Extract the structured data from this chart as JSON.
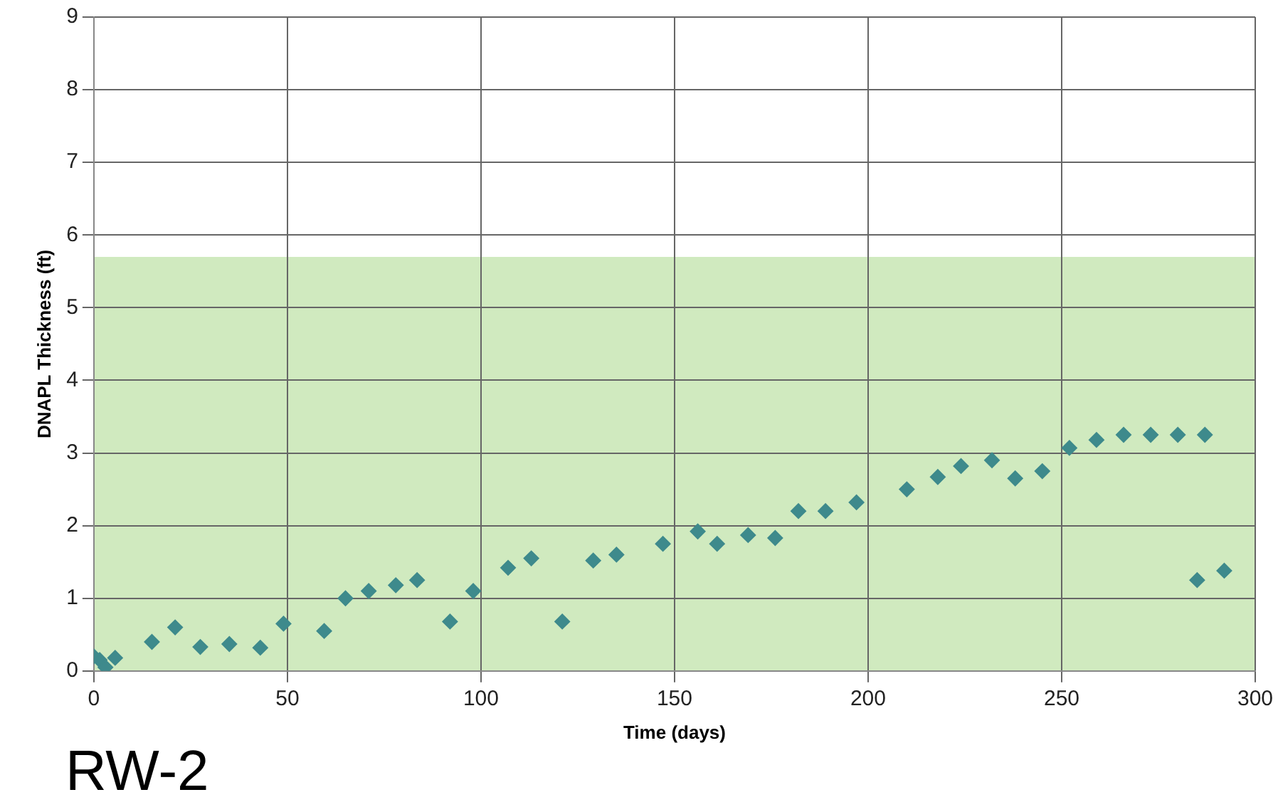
{
  "chart_data": {
    "type": "scatter",
    "title": "RW-2",
    "xlabel": "Time (days)",
    "ylabel": "DNAPL Thickness (ft)",
    "xlim": [
      0,
      300
    ],
    "xticks": [
      0,
      50,
      100,
      150,
      200,
      250,
      300
    ],
    "ylim": [
      0,
      9
    ],
    "yticks": [
      0,
      1,
      2,
      3,
      4,
      5,
      6,
      7,
      8,
      9
    ],
    "grid": true,
    "legend": false,
    "marker": "diamond",
    "bands": [
      {
        "axis": "y",
        "from": 0,
        "to": 5.7,
        "color": "#c8e6b4"
      }
    ],
    "series": [
      {
        "color": "#3e8a8c",
        "x": [
          0,
          1.5,
          3,
          5.5,
          15,
          21,
          27.5,
          35,
          43,
          49,
          59.5,
          65,
          71,
          78,
          83.5,
          92,
          98,
          107,
          113,
          121,
          129,
          135,
          147,
          156,
          161,
          169,
          176,
          182,
          189,
          197,
          210,
          218,
          224,
          232,
          238,
          245,
          252,
          259,
          266,
          273,
          280,
          287,
          285,
          292
        ],
        "values": [
          0.2,
          0.15,
          0.05,
          0.18,
          0.4,
          0.6,
          0.33,
          0.37,
          0.32,
          0.65,
          0.55,
          1.0,
          1.1,
          1.18,
          1.25,
          0.68,
          1.1,
          1.42,
          1.55,
          0.68,
          1.52,
          1.6,
          1.75,
          1.92,
          1.75,
          1.87,
          1.83,
          2.2,
          2.2,
          2.32,
          2.5,
          2.67,
          2.82,
          2.9,
          2.65,
          2.75,
          3.07,
          3.18,
          3.25,
          3.25,
          3.25,
          3.25,
          1.25,
          1.38
        ]
      }
    ]
  }
}
